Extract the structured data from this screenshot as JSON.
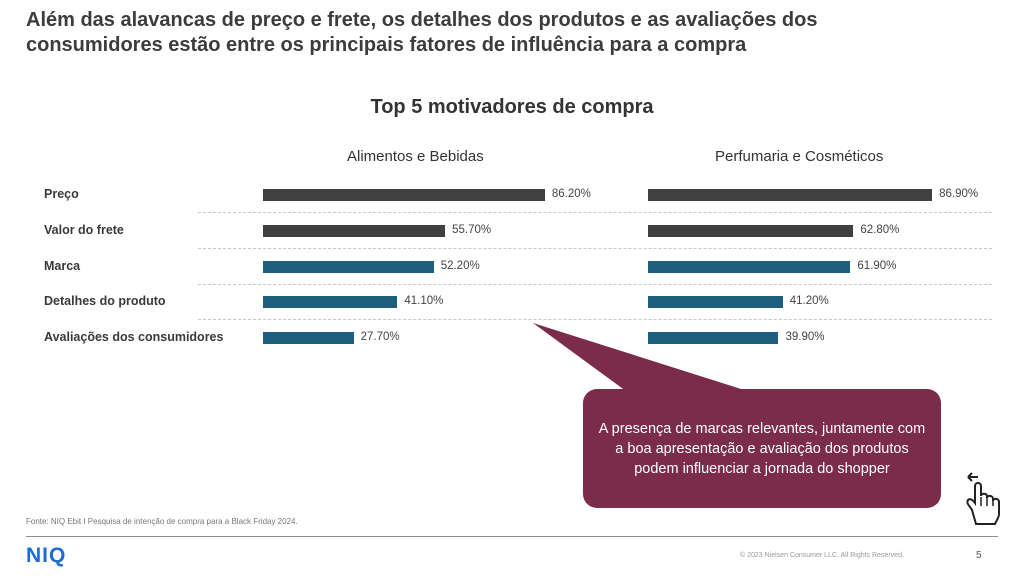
{
  "slide": {
    "title_line1": "Além das alavancas de preço e frete, os detalhes dos produtos e as avaliações dos",
    "title_line2": "consumidores estão entre os principais fatores de influência para a compra"
  },
  "chart_data": {
    "type": "bar",
    "orientation": "horizontal",
    "title": "Top 5 motivadores de compra",
    "categories": [
      "Preço",
      "Valor do frete",
      "Marca",
      "Detalhes do produto",
      "Avaliações dos consumidores"
    ],
    "panels": [
      {
        "title": "Alimentos e Bebidas",
        "values": [
          86.2,
          55.7,
          52.2,
          41.1,
          27.7
        ],
        "labels": [
          "86.20%",
          "55.70%",
          "52.20%",
          "41.10%",
          "27.70%"
        ]
      },
      {
        "title": "Perfumaria e Cosméticos",
        "values": [
          86.9,
          62.8,
          61.9,
          41.2,
          39.9
        ],
        "labels": [
          "86.90%",
          "62.80%",
          "61.90%",
          "41.20%",
          "39.90%"
        ]
      }
    ],
    "colors": [
      "#404040",
      "#404040",
      "#1e5f80",
      "#1e5f80",
      "#1e5f80"
    ],
    "xlim": [
      0,
      100
    ],
    "grid": false
  },
  "callout": {
    "text": "A presença de marcas relevantes, juntamente com a boa apresentação e avaliação dos produtos podem influenciar a jornada do shopper",
    "color": "#7b2c4a"
  },
  "footer": {
    "source": "Fonte: NIQ Ebit I Pesquisa de intenção de compra para a Black Friday 2024.",
    "logo": "NIQ",
    "copyright": "© 2023 Nielsen Consumer LLC. All Rights Reserved.",
    "page_number": "5"
  },
  "icons": {
    "hand": "hand-pointer-icon"
  }
}
